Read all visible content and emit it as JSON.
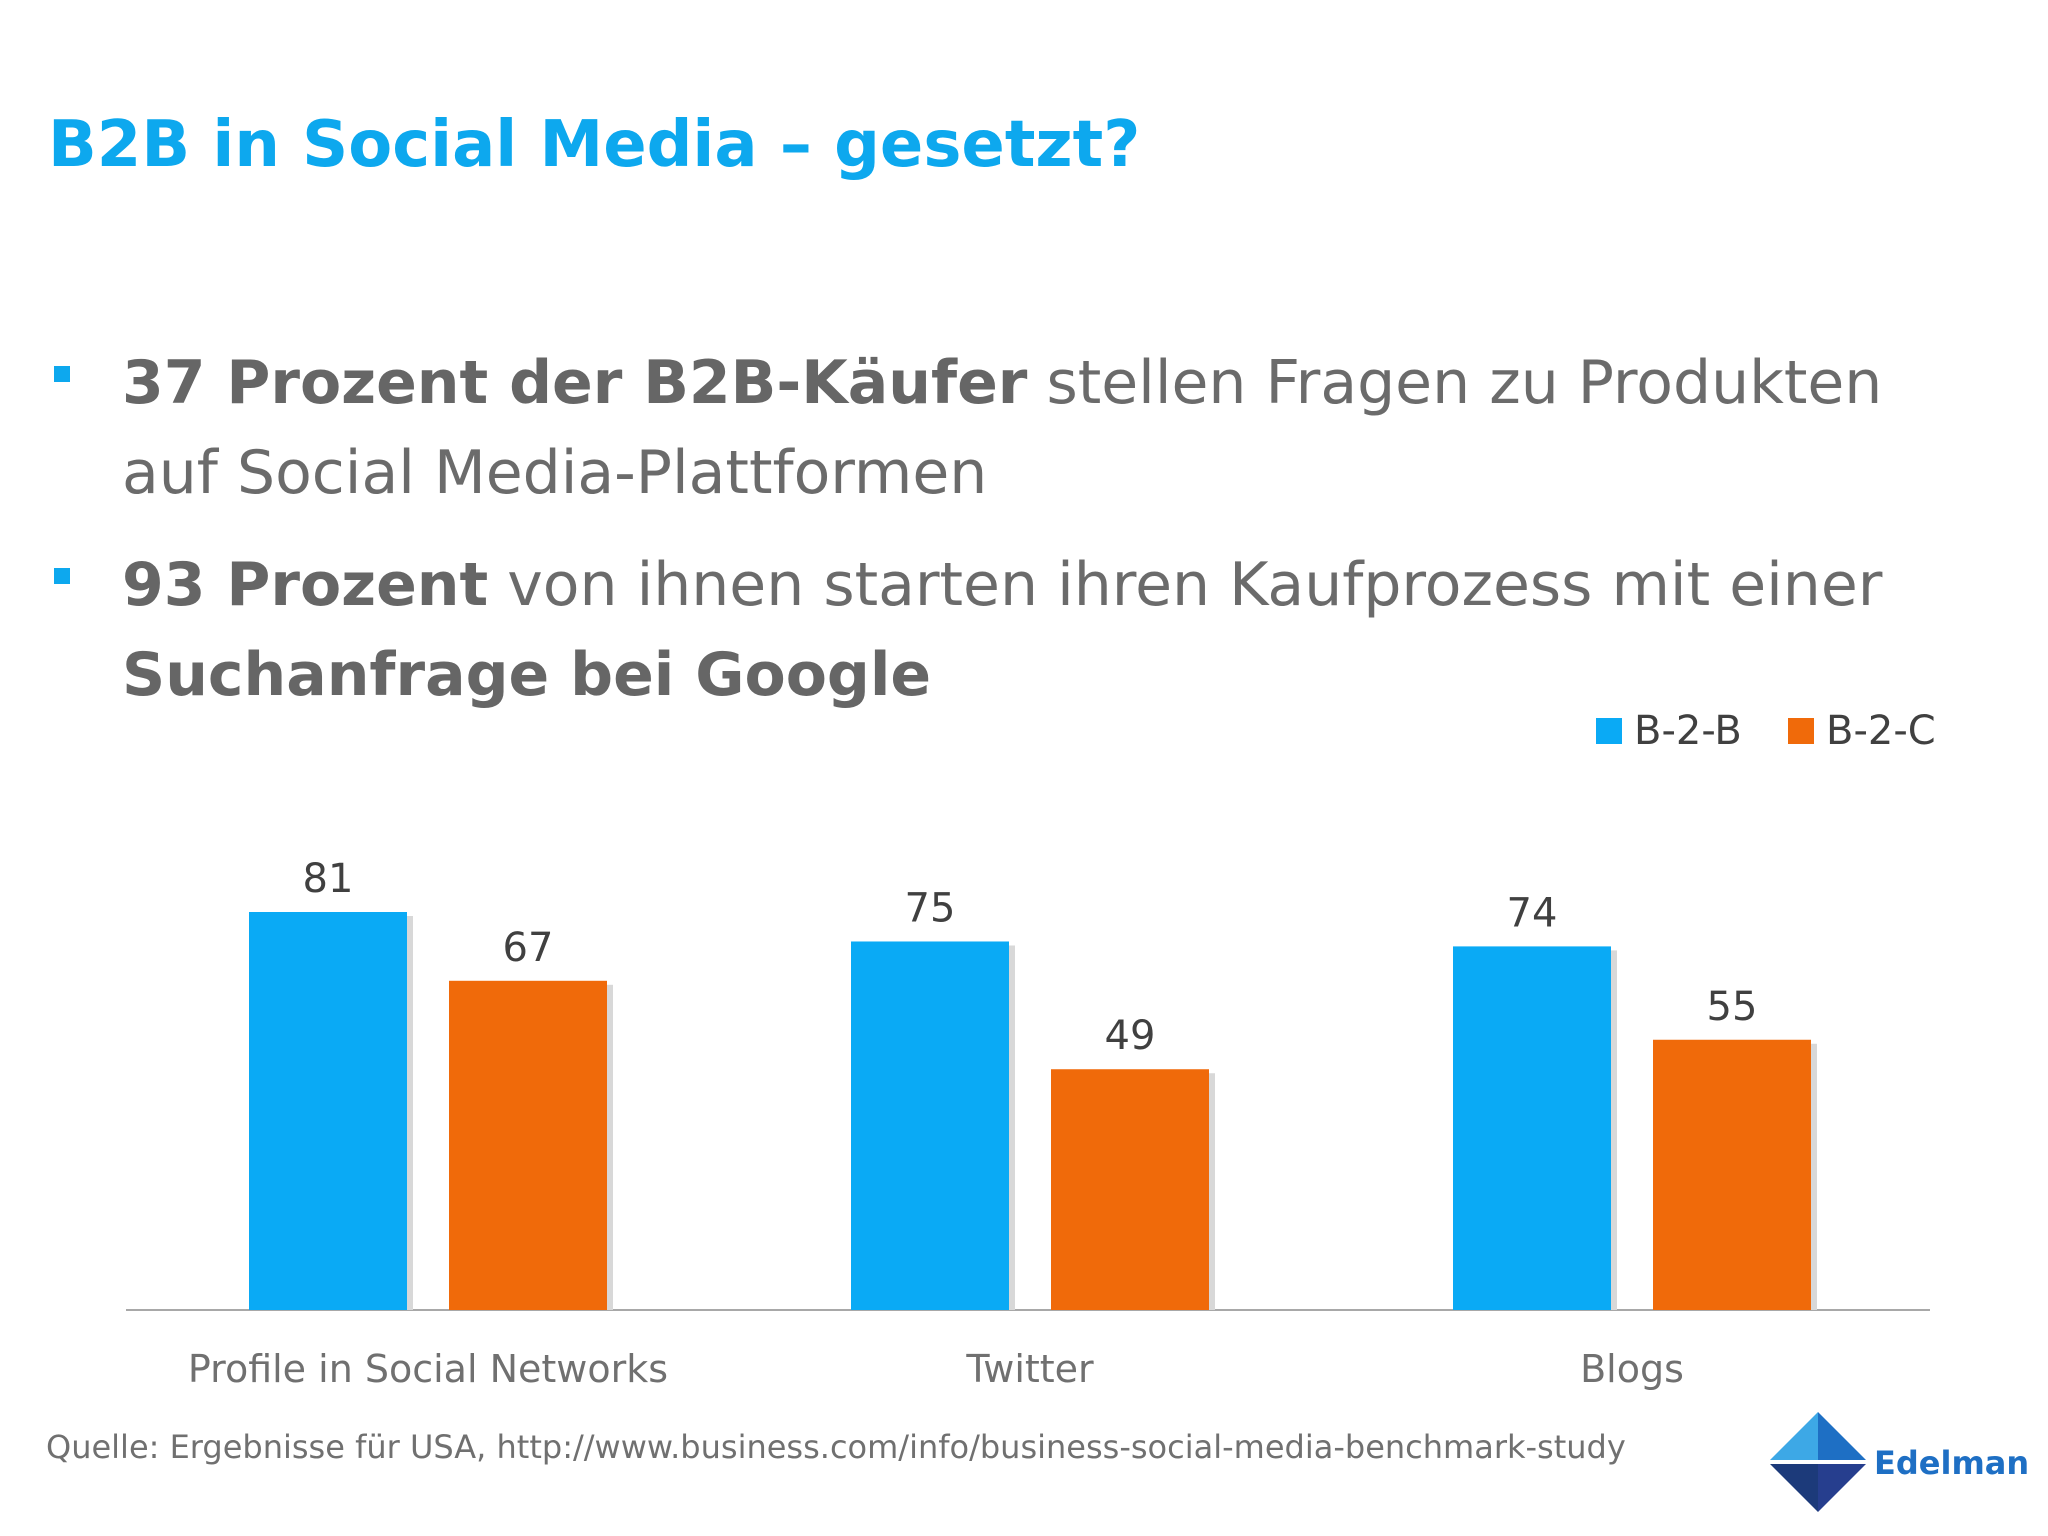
{
  "title": "B2B in Social Media – gesetzt?",
  "bullets": [
    {
      "bold": "37 Prozent der B2B-Käufer",
      "rest": " stellen Fragen zu Produkten auf Social Media-Plattformen",
      "tail_bold": ""
    },
    {
      "bold": "93 Prozent",
      "rest": " von ihnen starten ihren Kaufprozess mit einer ",
      "tail_bold": "Suchanfrage bei Google"
    }
  ],
  "chart_data": {
    "type": "bar",
    "categories": [
      "Profile in Social Networks",
      "Twitter",
      "Blogs"
    ],
    "series": [
      {
        "name": "B-2-B",
        "values": [
          81,
          75,
          74
        ],
        "color": "#0aaaf5"
      },
      {
        "name": "B-2-C",
        "values": [
          67,
          49,
          55
        ],
        "color": "#f06a0a"
      }
    ],
    "title": "",
    "xlabel": "",
    "ylabel": "",
    "ylim": [
      0,
      81
    ],
    "grid": false,
    "legend_position": "top-right",
    "data_labels": true
  },
  "source": "Quelle: Ergebnisse für USA, http://www.business.com/info/business-social-media-benchmark-study",
  "logo": {
    "text": "Edelman"
  }
}
